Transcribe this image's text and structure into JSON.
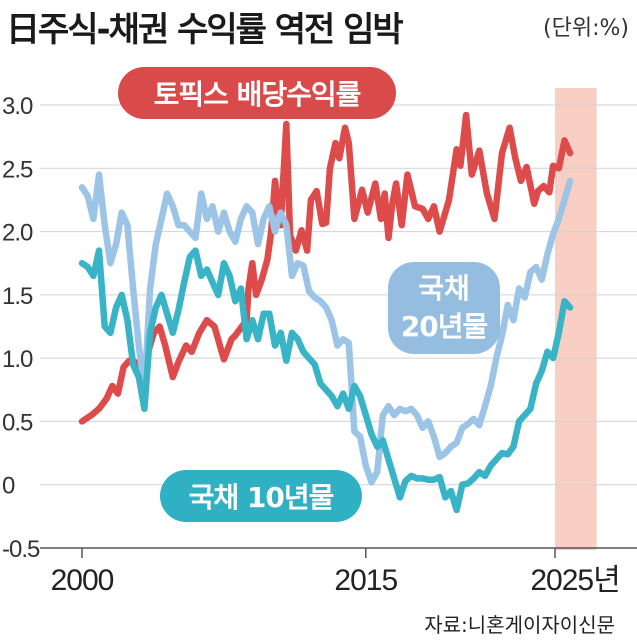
{
  "header": {
    "title": "日주식-채권 수익률 역전 임박",
    "unit": "(단위:%)"
  },
  "source": "자료:니혼게이자이신문",
  "chart_data": {
    "type": "line",
    "ylim": [
      -0.5,
      3.0
    ],
    "y_ticks": [
      "3.0",
      "2.5",
      "2.0",
      "1.5",
      "1.0",
      "0.5",
      "0",
      "-0.5"
    ],
    "y_tick_values": [
      3.0,
      2.5,
      2.0,
      1.5,
      1.0,
      0.5,
      0,
      -0.5
    ],
    "xlim": [
      2000,
      2026.5
    ],
    "x_ticks": [
      "2000",
      "2015",
      "2025년"
    ],
    "x_tick_values": [
      2000,
      2015,
      2025
    ],
    "grid": true,
    "highlight_range": [
      2025,
      2027.2
    ],
    "series": [
      {
        "name": "토픽스 배당수익률",
        "color": "#dd4b4b",
        "label_color": "#d94a4a",
        "x": [
          2000.0,
          2000.5,
          2000.9,
          2001.3,
          2001.6,
          2001.9,
          2002.2,
          2002.5,
          2002.8,
          2003.1,
          2003.4,
          2003.8,
          2004.1,
          2004.4,
          2004.8,
          2005.1,
          2005.5,
          2005.8,
          2006.2,
          2006.6,
          2007.0,
          2007.5,
          2007.9,
          2008.1,
          2008.4,
          2008.7,
          2008.8,
          2009.0,
          2009.2,
          2009.5,
          2009.8,
          2010.0,
          2010.2,
          2010.5,
          2010.8,
          2011.0,
          2011.3,
          2011.6,
          2011.9,
          2012.1,
          2012.4,
          2012.7,
          2012.9,
          2013.1,
          2013.4,
          2013.6,
          2013.9,
          2014.1,
          2014.4,
          2014.8,
          2015.1,
          2015.5,
          2015.8,
          2016.0,
          2016.2,
          2016.4,
          2016.6,
          2016.9,
          2017.2,
          2017.6,
          2018.0,
          2018.3,
          2018.6,
          2018.9,
          2019.2,
          2019.4,
          2019.6,
          2019.8,
          2020.0,
          2020.3,
          2020.6,
          2021.0,
          2021.4,
          2021.8,
          2022.2,
          2022.6,
          2022.9,
          2023.2,
          2023.5,
          2023.9,
          2024.1,
          2024.4,
          2024.7,
          2024.9,
          2025.2,
          2025.5,
          2025.8
        ],
        "y": [
          0.5,
          0.55,
          0.6,
          0.68,
          0.78,
          0.72,
          0.93,
          0.98,
          0.97,
          0.85,
          1.0,
          1.2,
          1.25,
          1.1,
          0.85,
          0.97,
          1.1,
          1.05,
          1.2,
          1.3,
          1.25,
          0.99,
          1.15,
          1.18,
          1.24,
          1.3,
          1.55,
          1.75,
          1.5,
          1.62,
          1.78,
          2.0,
          2.4,
          2.05,
          2.85,
          1.97,
          1.85,
          2.01,
          1.85,
          2.25,
          2.32,
          2.06,
          2.07,
          2.5,
          2.7,
          2.58,
          2.82,
          2.7,
          2.1,
          2.33,
          2.15,
          2.38,
          2.1,
          2.3,
          1.95,
          2.22,
          2.38,
          2.05,
          2.45,
          2.2,
          2.18,
          2.1,
          2.2,
          2.0,
          2.15,
          2.25,
          2.45,
          2.65,
          2.52,
          2.92,
          2.45,
          2.64,
          2.3,
          2.1,
          2.62,
          2.82,
          2.58,
          2.4,
          2.51,
          2.22,
          2.32,
          2.36,
          2.31,
          2.52,
          2.5,
          2.72,
          2.62
        ]
      },
      {
        "name": "국채 20년물",
        "color": "#9bc4e6",
        "label_color": "#94bde0",
        "x": [
          2000.0,
          2000.3,
          2000.6,
          2000.9,
          2001.2,
          2001.5,
          2001.8,
          2002.1,
          2002.4,
          2002.7,
          2003.0,
          2003.3,
          2003.6,
          2003.9,
          2004.2,
          2004.5,
          2004.8,
          2005.1,
          2005.4,
          2005.7,
          2006.0,
          2006.3,
          2006.6,
          2006.9,
          2007.2,
          2007.5,
          2007.8,
          2008.1,
          2008.4,
          2008.7,
          2009.0,
          2009.3,
          2009.6,
          2009.9,
          2010.2,
          2010.5,
          2010.8,
          2011.1,
          2011.4,
          2011.7,
          2012.0,
          2012.3,
          2012.6,
          2012.9,
          2013.2,
          2013.5,
          2013.8,
          2014.1,
          2014.4,
          2014.7,
          2015.0,
          2015.3,
          2015.6,
          2015.9,
          2016.2,
          2016.5,
          2016.8,
          2017.1,
          2017.4,
          2017.7,
          2018.0,
          2018.3,
          2018.6,
          2018.9,
          2019.2,
          2019.5,
          2019.8,
          2020.1,
          2020.4,
          2020.7,
          2021.0,
          2021.3,
          2021.6,
          2021.9,
          2022.2,
          2022.5,
          2022.8,
          2023.1,
          2023.4,
          2023.7,
          2024.0,
          2024.3,
          2024.6,
          2024.9,
          2025.2,
          2025.5,
          2025.8
        ],
        "y": [
          2.35,
          2.28,
          2.1,
          2.45,
          2.05,
          1.75,
          1.9,
          2.15,
          2.05,
          1.55,
          1.1,
          0.75,
          1.55,
          1.9,
          2.1,
          2.3,
          2.2,
          2.05,
          2.05,
          2.0,
          1.95,
          2.3,
          2.1,
          2.2,
          2.0,
          2.15,
          2.0,
          1.92,
          2.1,
          2.2,
          2.15,
          1.9,
          2.1,
          2.2,
          2.0,
          2.15,
          2.05,
          1.65,
          1.75,
          1.73,
          1.53,
          1.48,
          1.45,
          1.4,
          1.3,
          1.1,
          1.15,
          1.12,
          0.42,
          0.38,
          0.15,
          0.02,
          0.1,
          0.55,
          0.62,
          0.55,
          0.6,
          0.58,
          0.6,
          0.55,
          0.45,
          0.5,
          0.38,
          0.22,
          0.25,
          0.3,
          0.33,
          0.45,
          0.48,
          0.52,
          0.47,
          0.62,
          0.78,
          1.0,
          1.18,
          1.42,
          1.3,
          1.55,
          1.48,
          1.68,
          1.72,
          1.62,
          1.82,
          1.98,
          2.1,
          2.25,
          2.4
        ]
      },
      {
        "name": "국채 10년물",
        "color": "#39b3c6",
        "label_color": "#30b0c3",
        "x": [
          2000.0,
          2000.3,
          2000.6,
          2000.9,
          2001.2,
          2001.5,
          2001.8,
          2002.1,
          2002.4,
          2002.7,
          2003.0,
          2003.3,
          2003.6,
          2003.9,
          2004.2,
          2004.5,
          2004.8,
          2005.1,
          2005.4,
          2005.7,
          2006.0,
          2006.3,
          2006.6,
          2006.9,
          2007.2,
          2007.5,
          2007.8,
          2008.1,
          2008.4,
          2008.7,
          2009.0,
          2009.3,
          2009.6,
          2009.9,
          2010.2,
          2010.5,
          2010.8,
          2011.1,
          2011.4,
          2011.7,
          2012.0,
          2012.3,
          2012.6,
          2012.9,
          2013.2,
          2013.5,
          2013.8,
          2014.1,
          2014.4,
          2014.7,
          2015.0,
          2015.3,
          2015.6,
          2015.9,
          2016.2,
          2016.5,
          2016.8,
          2017.1,
          2017.4,
          2017.7,
          2018.0,
          2018.3,
          2018.6,
          2018.9,
          2019.2,
          2019.5,
          2019.8,
          2020.1,
          2020.4,
          2020.7,
          2021.0,
          2021.3,
          2021.6,
          2021.9,
          2022.2,
          2022.5,
          2022.8,
          2023.1,
          2023.4,
          2023.7,
          2024.0,
          2024.3,
          2024.6,
          2024.9,
          2025.2,
          2025.5,
          2025.8
        ],
        "y": [
          1.75,
          1.72,
          1.65,
          1.85,
          1.25,
          1.2,
          1.4,
          1.5,
          1.3,
          0.95,
          0.85,
          0.6,
          1.2,
          1.4,
          1.5,
          1.35,
          1.2,
          1.38,
          1.6,
          1.8,
          1.85,
          1.65,
          1.7,
          1.6,
          1.5,
          1.75,
          1.65,
          1.45,
          1.55,
          1.15,
          1.3,
          1.15,
          1.35,
          1.35,
          1.1,
          1.2,
          0.98,
          1.2,
          1.15,
          1.05,
          1.0,
          0.95,
          0.8,
          0.75,
          0.7,
          0.62,
          0.72,
          0.6,
          0.78,
          0.7,
          0.55,
          0.4,
          0.3,
          0.35,
          0.2,
          0.05,
          -0.1,
          0.03,
          0.07,
          0.05,
          0.05,
          0.04,
          0.04,
          0.06,
          -0.1,
          -0.05,
          -0.2,
          0.0,
          0.01,
          0.05,
          0.1,
          0.07,
          0.15,
          0.2,
          0.25,
          0.24,
          0.3,
          0.5,
          0.55,
          0.6,
          0.8,
          0.9,
          1.05,
          1.0,
          1.2,
          1.45,
          1.4
        ]
      }
    ],
    "labels": {
      "topix": "토픽스 배당수익률",
      "jgb20_line1": "국채",
      "jgb20_line2": "20년물",
      "jgb10": "국채 10년물"
    }
  }
}
